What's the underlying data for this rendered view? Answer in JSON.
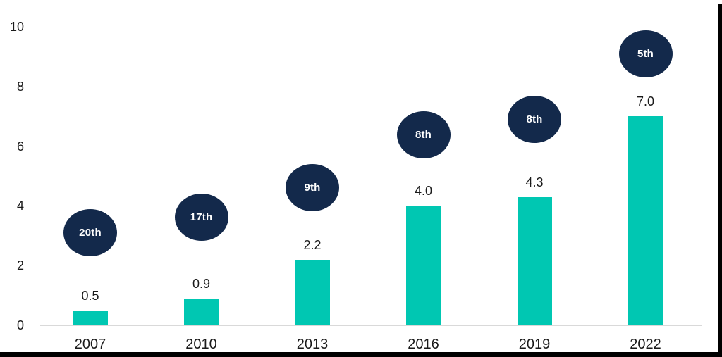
{
  "chart_data": {
    "type": "bar",
    "title": "",
    "xlabel": "",
    "ylabel": "",
    "categories": [
      "2007",
      "2010",
      "2013",
      "2016",
      "2019",
      "2022"
    ],
    "values": [
      0.5,
      0.9,
      2.2,
      4.0,
      4.3,
      7.0
    ],
    "value_labels": [
      "0.5",
      "0.9",
      "2.2",
      "4.0",
      "4.3",
      "7.0"
    ],
    "badge_labels": [
      "20th",
      "17th",
      "9th",
      "8th",
      "8th",
      "5th"
    ],
    "badge_y_units": [
      3.1,
      3.62,
      4.62,
      6.37,
      6.89,
      9.1
    ],
    "ylim": [
      0,
      10
    ],
    "yticks": [
      0,
      2,
      4,
      6,
      8,
      10
    ],
    "grid": false,
    "legend": false,
    "colors": {
      "bar": "#00c7b2",
      "badge": "#13294b",
      "badge_text": "#ffffff",
      "axis_line": "#d9d9d9",
      "text": "#1a1a1a",
      "frame": "#000000",
      "background": "#ffffff"
    }
  }
}
